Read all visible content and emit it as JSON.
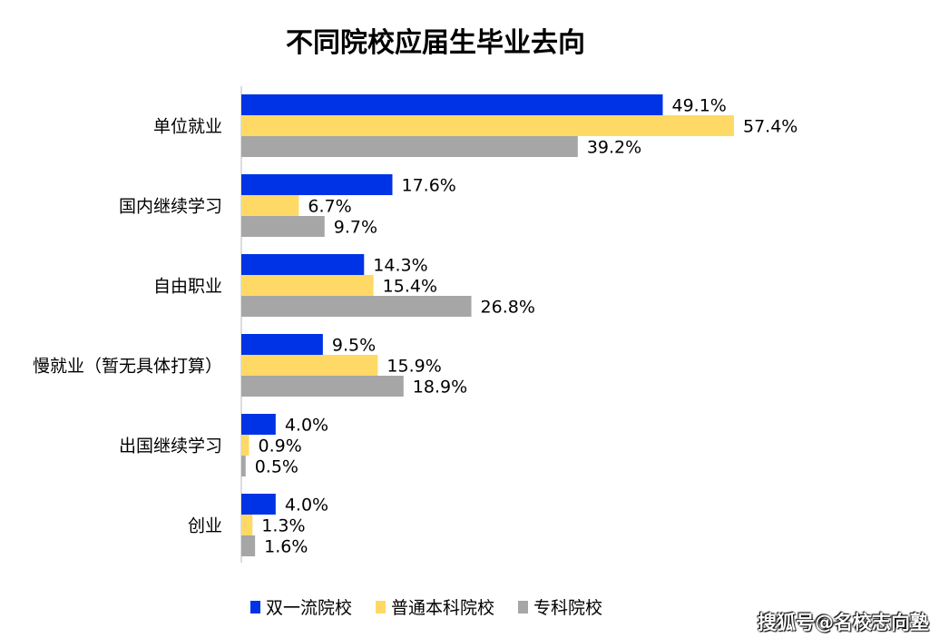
{
  "chart_data": {
    "type": "bar",
    "orientation": "horizontal",
    "title": "不同院校应届生毕业去向",
    "categories": [
      "单位就业",
      "国内继续学习",
      "自由职业",
      "慢就业（暂无具体打算）",
      "出国继续学习",
      "创业"
    ],
    "series": [
      {
        "name": "双一流院校",
        "color": "#0033e6",
        "values": [
          49.1,
          17.6,
          14.3,
          9.5,
          4.0,
          4.0
        ],
        "labels": [
          "49.1%",
          "17.6%",
          "14.3%",
          "9.5%",
          "4.0%",
          "4.0%"
        ]
      },
      {
        "name": "普通本科院校",
        "color": "#ffd966",
        "values": [
          57.4,
          6.7,
          15.4,
          15.9,
          0.9,
          1.3
        ],
        "labels": [
          "57.4%",
          "6.7%",
          "15.4%",
          "15.9%",
          "0.9%",
          "1.3%"
        ]
      },
      {
        "name": "专科院校",
        "color": "#a6a6a6",
        "values": [
          39.2,
          9.7,
          26.8,
          18.9,
          0.5,
          1.6
        ],
        "labels": [
          "39.2%",
          "9.7%",
          "26.8%",
          "18.9%",
          "0.5%",
          "1.6%"
        ]
      }
    ],
    "unit": "%",
    "grid": false,
    "legend_position": "bottom"
  },
  "watermark": "搜狐号@名校志向塾"
}
